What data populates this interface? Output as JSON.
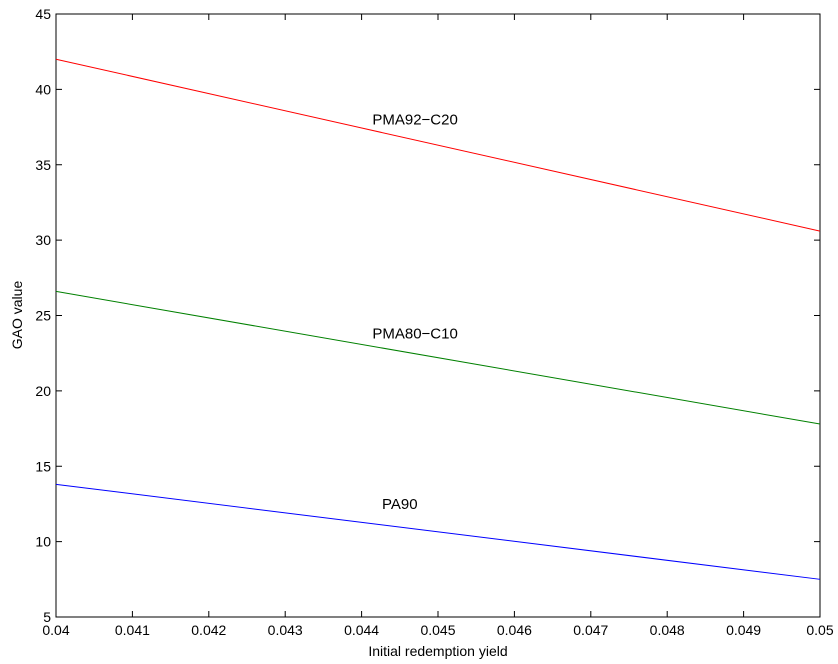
{
  "chart_data": {
    "type": "line",
    "xlabel": "Initial redemption yield",
    "ylabel": "GAO value",
    "xlim": [
      0.04,
      0.05
    ],
    "ylim": [
      5,
      45
    ],
    "xticks": [
      "0.04",
      "0.041",
      "0.042",
      "0.043",
      "0.044",
      "0.045",
      "0.046",
      "0.047",
      "0.048",
      "0.049",
      "0.05"
    ],
    "xtick_values": [
      0.04,
      0.041,
      0.042,
      0.043,
      0.044,
      0.045,
      0.046,
      0.047,
      0.048,
      0.049,
      0.05
    ],
    "yticks": [
      "5",
      "10",
      "15",
      "20",
      "25",
      "30",
      "35",
      "40",
      "45"
    ],
    "ytick_values": [
      5,
      10,
      15,
      20,
      25,
      30,
      35,
      40,
      45
    ],
    "grid": false,
    "series": [
      {
        "name": "PMA92−C20",
        "color": "#ff0000",
        "x": [
          0.04,
          0.05
        ],
        "y": [
          42.0,
          30.6
        ],
        "label_at": [
          0.0447,
          38.0
        ]
      },
      {
        "name": "PMA80−C10",
        "color": "#008000",
        "x": [
          0.04,
          0.05
        ],
        "y": [
          26.6,
          17.8
        ],
        "label_at": [
          0.0447,
          23.8
        ]
      },
      {
        "name": "PA90",
        "color": "#0000ff",
        "x": [
          0.04,
          0.05
        ],
        "y": [
          13.8,
          7.5
        ],
        "label_at": [
          0.0445,
          12.5
        ]
      }
    ]
  }
}
